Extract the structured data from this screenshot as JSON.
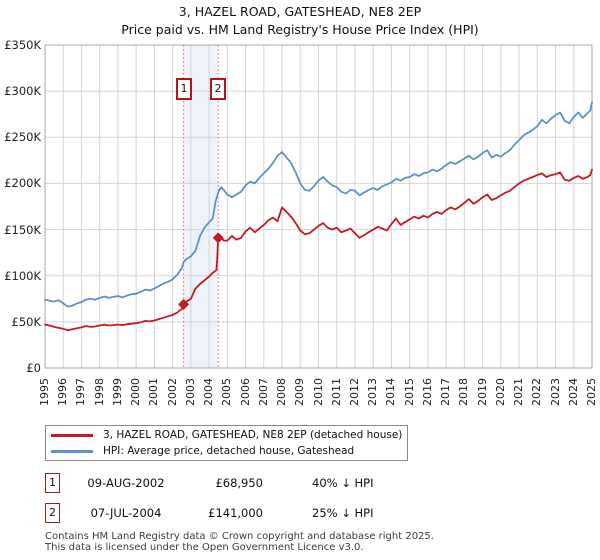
{
  "page": {
    "title": "3, HAZEL ROAD, GATESHEAD, NE8 2EP",
    "subtitle": "Price paid vs. HM Land Registry's House Price Index (HPI)"
  },
  "chart_data": {
    "type": "line",
    "title": "3, HAZEL ROAD, GATESHEAD, NE8 2EP",
    "subtitle": "Price paid vs. HM Land Registry's House Price Index (HPI)",
    "xlabel": "",
    "ylabel": "",
    "xlim": [
      1995,
      2025
    ],
    "ylim": [
      0,
      350000
    ],
    "grid": true,
    "legend_position": "bottom",
    "x_ticks": [
      "1995",
      "1996",
      "1997",
      "1998",
      "1999",
      "2000",
      "2001",
      "2002",
      "2003",
      "2004",
      "2005",
      "2006",
      "2007",
      "2008",
      "2009",
      "2010",
      "2011",
      "2012",
      "2013",
      "2014",
      "2015",
      "2016",
      "2017",
      "2018",
      "2019",
      "2020",
      "2021",
      "2022",
      "2023",
      "2024",
      "2025"
    ],
    "y_ticks": [
      {
        "value": 0,
        "label": "£0"
      },
      {
        "value": 50000,
        "label": "£50K"
      },
      {
        "value": 100000,
        "label": "£100K"
      },
      {
        "value": 150000,
        "label": "£150K"
      },
      {
        "value": 200000,
        "label": "£200K"
      },
      {
        "value": 250000,
        "label": "£250K"
      },
      {
        "value": 300000,
        "label": "£300K"
      },
      {
        "value": 350000,
        "label": "£350K"
      }
    ],
    "colors": {
      "property_line": "#c41a24",
      "hpi_line": "#6190c8",
      "grid": "#d4d4d4",
      "plot_border": "#a8a8a8",
      "band_fill": "#edf2fb",
      "dotted_marker_line": "#ff6666",
      "flag_border": "#b0161c"
    },
    "shaded_band": [
      2002.6,
      2004.5
    ],
    "series": [
      {
        "name": "3, HAZEL ROAD, GATESHEAD, NE8 2EP (detached house)",
        "color": "#c41a24",
        "points": [
          [
            1995.0,
            47000
          ],
          [
            1995.25,
            46000
          ],
          [
            1995.5,
            44500
          ],
          [
            1995.75,
            43500
          ],
          [
            1996.0,
            42500
          ],
          [
            1996.25,
            41000
          ],
          [
            1996.5,
            42000
          ],
          [
            1996.75,
            43000
          ],
          [
            1997.0,
            44000
          ],
          [
            1997.25,
            45500
          ],
          [
            1997.5,
            44500
          ],
          [
            1997.75,
            45000
          ],
          [
            1998.0,
            46000
          ],
          [
            1998.25,
            47000
          ],
          [
            1998.5,
            46000
          ],
          [
            1998.75,
            46500
          ],
          [
            1999.0,
            47000
          ],
          [
            1999.25,
            46500
          ],
          [
            1999.5,
            47500
          ],
          [
            1999.75,
            48000
          ],
          [
            2000.0,
            48500
          ],
          [
            2000.25,
            49500
          ],
          [
            2000.5,
            51000
          ],
          [
            2000.75,
            50500
          ],
          [
            2001.0,
            51500
          ],
          [
            2001.25,
            53000
          ],
          [
            2001.5,
            54500
          ],
          [
            2001.75,
            56000
          ],
          [
            2002.0,
            57500
          ],
          [
            2002.25,
            60000
          ],
          [
            2002.5,
            64000
          ],
          [
            2002.6,
            68950
          ],
          [
            2002.75,
            72000
          ],
          [
            2003.0,
            75000
          ],
          [
            2003.25,
            86000
          ],
          [
            2003.5,
            91000
          ],
          [
            2003.75,
            95000
          ],
          [
            2004.0,
            99000
          ],
          [
            2004.2,
            103000
          ],
          [
            2004.4,
            106000
          ],
          [
            2004.45,
            120000
          ],
          [
            2004.5,
            141000
          ],
          [
            2004.65,
            142000
          ],
          [
            2004.8,
            138000
          ],
          [
            2005.0,
            138000
          ],
          [
            2005.25,
            143000
          ],
          [
            2005.5,
            139000
          ],
          [
            2005.75,
            141000
          ],
          [
            2006.0,
            148000
          ],
          [
            2006.25,
            152000
          ],
          [
            2006.5,
            147000
          ],
          [
            2006.75,
            151000
          ],
          [
            2007.0,
            155000
          ],
          [
            2007.25,
            160000
          ],
          [
            2007.5,
            163000
          ],
          [
            2007.75,
            159000
          ],
          [
            2008.0,
            174000
          ],
          [
            2008.25,
            169000
          ],
          [
            2008.5,
            164000
          ],
          [
            2008.75,
            157000
          ],
          [
            2009.0,
            149000
          ],
          [
            2009.25,
            145000
          ],
          [
            2009.5,
            146000
          ],
          [
            2009.75,
            150000
          ],
          [
            2010.0,
            154000
          ],
          [
            2010.25,
            157000
          ],
          [
            2010.5,
            152000
          ],
          [
            2010.75,
            150000
          ],
          [
            2011.0,
            152000
          ],
          [
            2011.25,
            147000
          ],
          [
            2011.5,
            149000
          ],
          [
            2011.75,
            151000
          ],
          [
            2012.0,
            146000
          ],
          [
            2012.25,
            141000
          ],
          [
            2012.5,
            144000
          ],
          [
            2012.75,
            147000
          ],
          [
            2013.0,
            150000
          ],
          [
            2013.25,
            153000
          ],
          [
            2013.5,
            151000
          ],
          [
            2013.75,
            149000
          ],
          [
            2014.0,
            156000
          ],
          [
            2014.25,
            162000
          ],
          [
            2014.5,
            155000
          ],
          [
            2014.75,
            158000
          ],
          [
            2015.0,
            161000
          ],
          [
            2015.25,
            164000
          ],
          [
            2015.5,
            162000
          ],
          [
            2015.75,
            165000
          ],
          [
            2016.0,
            163000
          ],
          [
            2016.25,
            167000
          ],
          [
            2016.5,
            169000
          ],
          [
            2016.75,
            167000
          ],
          [
            2017.0,
            171000
          ],
          [
            2017.25,
            174000
          ],
          [
            2017.5,
            172000
          ],
          [
            2017.75,
            175000
          ],
          [
            2018.0,
            179000
          ],
          [
            2018.25,
            183000
          ],
          [
            2018.5,
            178000
          ],
          [
            2018.75,
            181000
          ],
          [
            2019.0,
            185000
          ],
          [
            2019.25,
            188000
          ],
          [
            2019.5,
            182000
          ],
          [
            2019.75,
            184000
          ],
          [
            2020.0,
            187000
          ],
          [
            2020.25,
            190000
          ],
          [
            2020.5,
            192000
          ],
          [
            2020.75,
            196000
          ],
          [
            2021.0,
            200000
          ],
          [
            2021.25,
            203000
          ],
          [
            2021.5,
            205000
          ],
          [
            2021.75,
            207000
          ],
          [
            2022.0,
            209000
          ],
          [
            2022.25,
            211000
          ],
          [
            2022.5,
            207000
          ],
          [
            2022.75,
            209000
          ],
          [
            2023.0,
            210000
          ],
          [
            2023.25,
            212000
          ],
          [
            2023.5,
            204000
          ],
          [
            2023.75,
            203000
          ],
          [
            2024.0,
            206000
          ],
          [
            2024.25,
            208000
          ],
          [
            2024.5,
            205000
          ],
          [
            2024.75,
            207000
          ],
          [
            2024.9,
            209000
          ],
          [
            2025.0,
            215000
          ]
        ]
      },
      {
        "name": "HPI: Average price, detached house, Gateshead",
        "color": "#6190c8",
        "points": [
          [
            1995.0,
            74000
          ],
          [
            1995.25,
            73000
          ],
          [
            1995.5,
            72000
          ],
          [
            1995.75,
            73500
          ],
          [
            1996.0,
            70000
          ],
          [
            1996.25,
            66500
          ],
          [
            1996.5,
            67500
          ],
          [
            1996.75,
            70000
          ],
          [
            1997.0,
            71500
          ],
          [
            1997.25,
            74000
          ],
          [
            1997.5,
            75000
          ],
          [
            1997.75,
            74000
          ],
          [
            1998.0,
            76000
          ],
          [
            1998.25,
            77500
          ],
          [
            1998.5,
            76000
          ],
          [
            1998.75,
            77000
          ],
          [
            1999.0,
            78000
          ],
          [
            1999.25,
            76500
          ],
          [
            1999.5,
            78500
          ],
          [
            1999.75,
            80000
          ],
          [
            2000.0,
            80500
          ],
          [
            2000.25,
            82500
          ],
          [
            2000.5,
            85000
          ],
          [
            2000.75,
            84000
          ],
          [
            2001.0,
            86000
          ],
          [
            2001.25,
            89000
          ],
          [
            2001.5,
            91500
          ],
          [
            2001.75,
            93500
          ],
          [
            2002.0,
            96000
          ],
          [
            2002.25,
            101000
          ],
          [
            2002.5,
            108000
          ],
          [
            2002.6,
            115000
          ],
          [
            2002.75,
            118000
          ],
          [
            2003.0,
            121000
          ],
          [
            2003.25,
            127000
          ],
          [
            2003.5,
            143000
          ],
          [
            2003.75,
            152000
          ],
          [
            2004.0,
            158000
          ],
          [
            2004.2,
            162000
          ],
          [
            2004.35,
            180000
          ],
          [
            2004.5,
            190000
          ],
          [
            2004.65,
            196000
          ],
          [
            2004.8,
            193000
          ],
          [
            2005.0,
            188000
          ],
          [
            2005.25,
            185000
          ],
          [
            2005.5,
            188000
          ],
          [
            2005.75,
            191000
          ],
          [
            2006.0,
            198000
          ],
          [
            2006.25,
            202000
          ],
          [
            2006.5,
            200000
          ],
          [
            2006.75,
            206000
          ],
          [
            2007.0,
            211000
          ],
          [
            2007.25,
            216000
          ],
          [
            2007.5,
            222000
          ],
          [
            2007.75,
            230000
          ],
          [
            2008.0,
            234000
          ],
          [
            2008.25,
            228000
          ],
          [
            2008.5,
            222000
          ],
          [
            2008.75,
            212000
          ],
          [
            2009.0,
            200000
          ],
          [
            2009.25,
            193000
          ],
          [
            2009.5,
            192000
          ],
          [
            2009.75,
            197000
          ],
          [
            2010.0,
            203000
          ],
          [
            2010.25,
            207000
          ],
          [
            2010.5,
            202000
          ],
          [
            2010.75,
            198000
          ],
          [
            2011.0,
            196000
          ],
          [
            2011.25,
            191000
          ],
          [
            2011.5,
            189000
          ],
          [
            2011.75,
            193000
          ],
          [
            2012.0,
            192000
          ],
          [
            2012.25,
            187000
          ],
          [
            2012.5,
            190000
          ],
          [
            2012.75,
            193000
          ],
          [
            2013.0,
            195000
          ],
          [
            2013.25,
            193000
          ],
          [
            2013.5,
            197000
          ],
          [
            2013.75,
            199000
          ],
          [
            2014.0,
            201000
          ],
          [
            2014.25,
            205000
          ],
          [
            2014.5,
            203000
          ],
          [
            2014.75,
            206000
          ],
          [
            2015.0,
            207000
          ],
          [
            2015.25,
            210000
          ],
          [
            2015.5,
            208000
          ],
          [
            2015.75,
            211000
          ],
          [
            2016.0,
            212000
          ],
          [
            2016.25,
            215000
          ],
          [
            2016.5,
            213000
          ],
          [
            2016.75,
            216000
          ],
          [
            2017.0,
            220000
          ],
          [
            2017.25,
            223000
          ],
          [
            2017.5,
            221000
          ],
          [
            2017.75,
            224000
          ],
          [
            2018.0,
            227000
          ],
          [
            2018.25,
            230000
          ],
          [
            2018.5,
            226000
          ],
          [
            2018.75,
            229000
          ],
          [
            2019.0,
            233000
          ],
          [
            2019.25,
            236000
          ],
          [
            2019.5,
            228000
          ],
          [
            2019.75,
            231000
          ],
          [
            2020.0,
            229000
          ],
          [
            2020.25,
            233000
          ],
          [
            2020.5,
            236000
          ],
          [
            2020.75,
            242000
          ],
          [
            2021.0,
            247000
          ],
          [
            2021.25,
            252000
          ],
          [
            2021.5,
            255000
          ],
          [
            2021.75,
            258000
          ],
          [
            2022.0,
            262000
          ],
          [
            2022.25,
            269000
          ],
          [
            2022.5,
            265000
          ],
          [
            2022.75,
            270000
          ],
          [
            2023.0,
            274000
          ],
          [
            2023.25,
            277000
          ],
          [
            2023.5,
            268000
          ],
          [
            2023.75,
            265000
          ],
          [
            2024.0,
            272000
          ],
          [
            2024.25,
            277000
          ],
          [
            2024.5,
            271000
          ],
          [
            2024.75,
            276000
          ],
          [
            2024.9,
            279000
          ],
          [
            2025.0,
            288000
          ]
        ]
      }
    ],
    "sales": [
      {
        "label": "1",
        "x": 2002.6,
        "price_value": 68950,
        "date": "09-AUG-2002",
        "price": "£68,950",
        "delta": "40% ↓ HPI"
      },
      {
        "label": "2",
        "x": 2004.5,
        "price_value": 141000,
        "date": "07-JUL-2004",
        "price": "£141,000",
        "delta": "25% ↓ HPI"
      }
    ]
  },
  "footer": {
    "line1": "Contains HM Land Registry data © Crown copyright and database right 2025.",
    "line2": "This data is licensed under the Open Government Licence v3.0."
  }
}
